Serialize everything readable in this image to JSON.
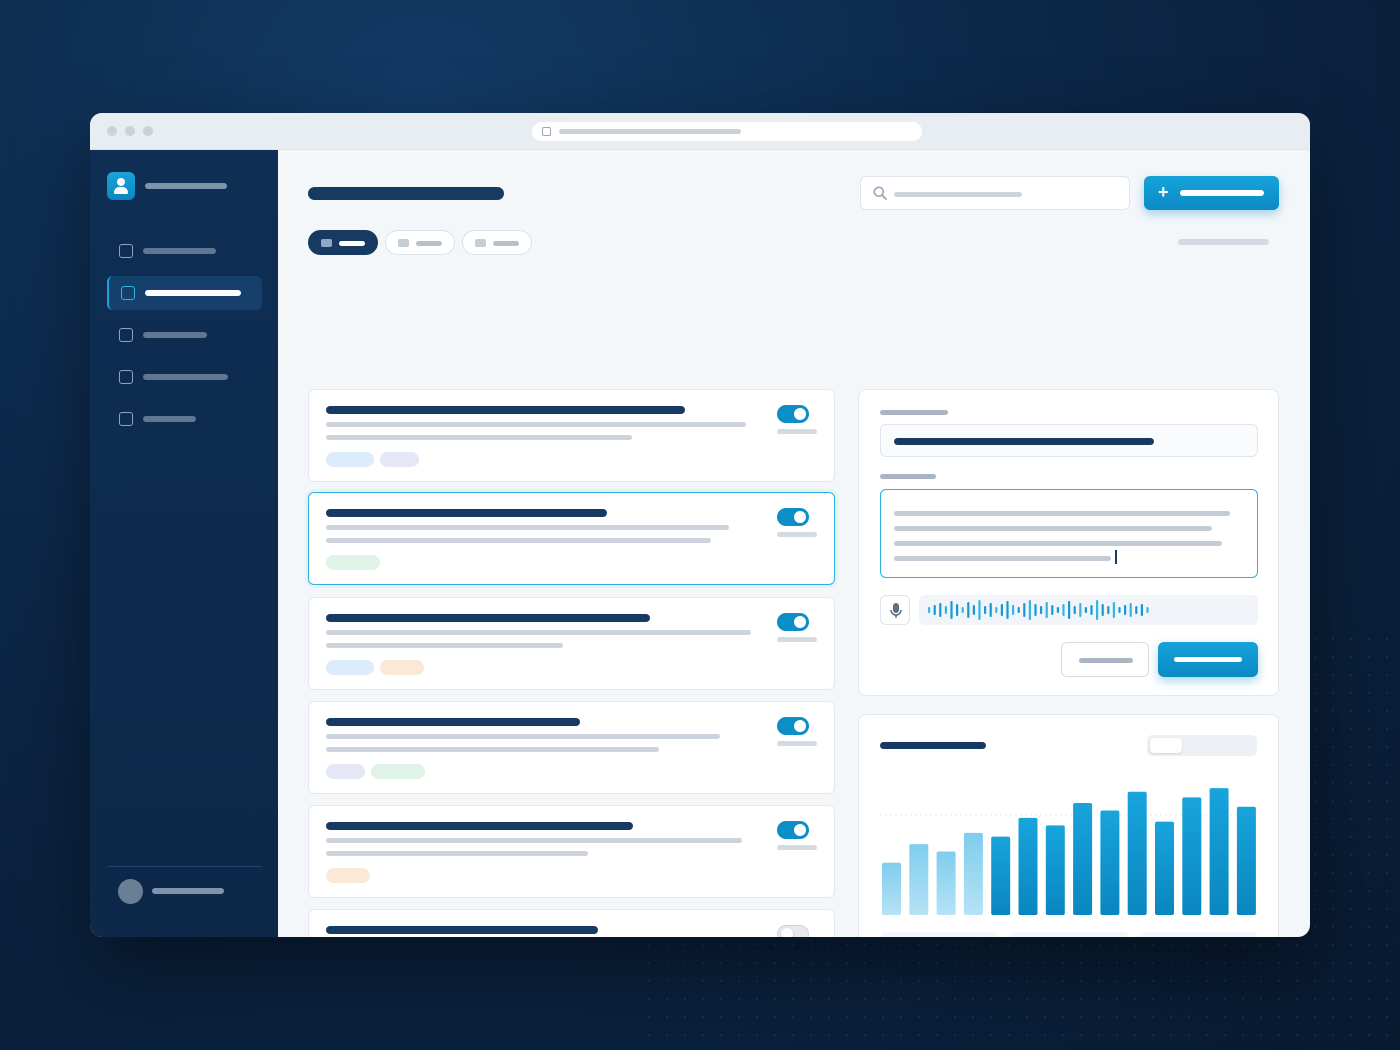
{
  "window": {
    "controls": [
      "close",
      "minimize",
      "maximize"
    ],
    "url_icon": "page-icon"
  },
  "sidebar": {
    "brand_icon": "user-icon",
    "items": [
      {
        "icon": "square-icon",
        "active": false
      },
      {
        "icon": "square-icon",
        "active": true
      },
      {
        "icon": "square-icon",
        "active": false
      },
      {
        "icon": "square-icon",
        "active": false
      },
      {
        "icon": "square-icon",
        "active": false
      }
    ],
    "footer_avatar": "avatar"
  },
  "header": {
    "search_icon": "search-icon",
    "add_button_icon": "plus",
    "add_button_glyph": "+"
  },
  "filters": [
    {
      "active": true
    },
    {
      "active": false
    },
    {
      "active": false
    }
  ],
  "list": {
    "items": [
      {
        "toggle": "on",
        "tags": [
          "blue",
          "lavender"
        ]
      },
      {
        "toggle": "on",
        "tags": [
          "green"
        ],
        "selected": true
      },
      {
        "toggle": "on",
        "tags": [
          "blue",
          "orange"
        ]
      },
      {
        "toggle": "on",
        "tags": [
          "lavender",
          "green"
        ]
      },
      {
        "toggle": "on",
        "tags": [
          "orange"
        ]
      },
      {
        "toggle": "off",
        "tags": [
          "blue",
          "green"
        ]
      }
    ]
  },
  "form": {
    "mic_icon": "microphone-icon",
    "waveform": "audio-waveform"
  },
  "colors": {
    "accent": "#0b8ac4",
    "navy": "#173a62",
    "tag_blue": "#dcecfa",
    "tag_lavender": "#e4e8f6",
    "tag_green": "#dff3e6",
    "tag_orange": "#fbe9d8"
  },
  "chart_data": {
    "type": "bar",
    "values": [
      28,
      38,
      34,
      44,
      42,
      52,
      48,
      60,
      56,
      66,
      50,
      63,
      68,
      58
    ],
    "ylim": [
      0,
      75
    ],
    "grid": false,
    "color": "#0b8ac4"
  }
}
